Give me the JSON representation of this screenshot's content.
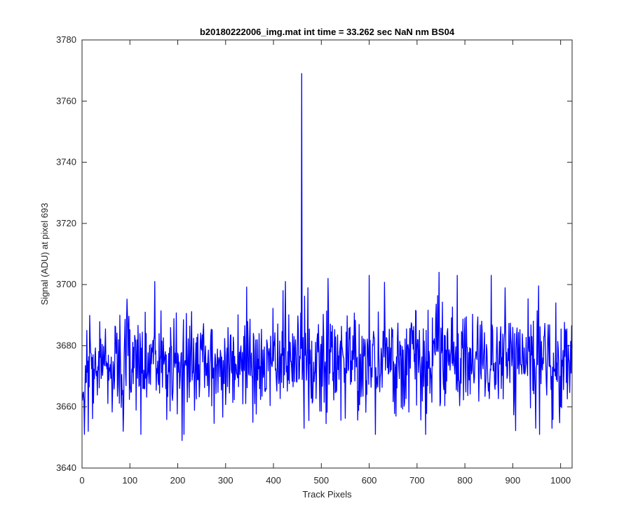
{
  "chart_data": {
    "type": "line",
    "title": "b20180222006_img.mat int time = 33.262 sec  NaN nm BS04",
    "xlabel": "Track Pixels",
    "ylabel": "Signal (ADU) at pixel 693",
    "xlim": [
      0,
      1024
    ],
    "ylim": [
      3640,
      3780
    ],
    "xticks": [
      0,
      100,
      200,
      300,
      400,
      500,
      600,
      700,
      800,
      900,
      1000
    ],
    "yticks": [
      3640,
      3660,
      3680,
      3700,
      3720,
      3740,
      3760,
      3780
    ],
    "grid": false,
    "series": [
      {
        "color": "#0000ff",
        "description": "noisy signal fluctuating about 3675 ADU (range roughly 3649-3704) across track pixels 1-1024, with a single spike to about 3769 ADU near pixel 459",
        "baseline": 3675,
        "range": [
          3649,
          3704
        ],
        "peaks": [
          {
            "x": 459,
            "y": 3769
          },
          {
            "x": 746,
            "y": 3704
          },
          {
            "x": 425,
            "y": 3701
          },
          {
            "x": 152,
            "y": 3701
          },
          {
            "x": 600,
            "y": 3703
          },
          {
            "x": 784,
            "y": 3703
          },
          {
            "x": 855,
            "y": 3703
          }
        ],
        "troughs": [
          {
            "x": 209,
            "y": 3649
          },
          {
            "x": 613,
            "y": 3651
          },
          {
            "x": 123,
            "y": 3651
          },
          {
            "x": 13,
            "y": 3652
          },
          {
            "x": 86,
            "y": 3652
          },
          {
            "x": 948,
            "y": 3653
          },
          {
            "x": 464,
            "y": 3653
          },
          {
            "x": 982,
            "y": 3653
          }
        ]
      }
    ]
  }
}
